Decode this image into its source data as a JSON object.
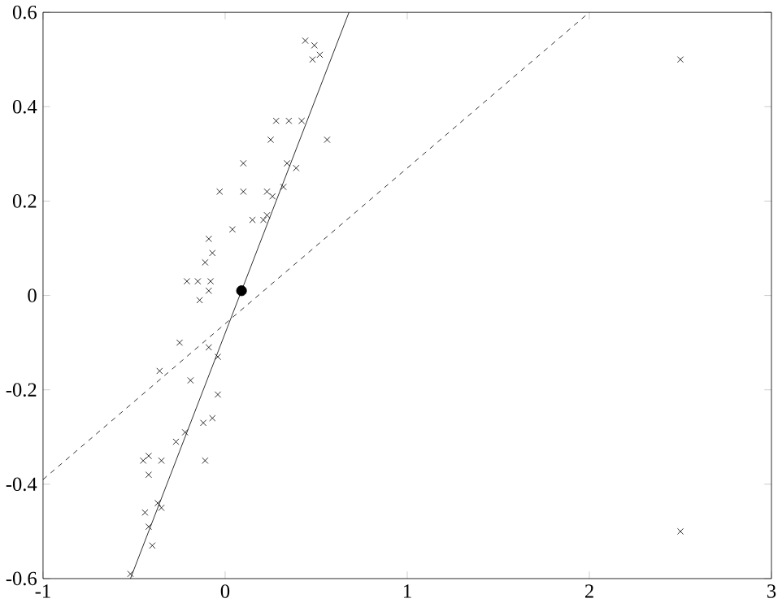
{
  "chart_data": {
    "type": "scatter",
    "xlim": [
      -1,
      3
    ],
    "ylim": [
      -0.6,
      0.6
    ],
    "xticks": [
      -1,
      0,
      1,
      2,
      3
    ],
    "yticks": [
      -0.6,
      -0.4,
      -0.2,
      0,
      0.2,
      0.4,
      0.6
    ],
    "grid": false,
    "series": [
      {
        "marker": "cross",
        "color": "#000000",
        "x": [
          0.44,
          0.49,
          0.52,
          0.48,
          0.28,
          0.35,
          0.42,
          0.25,
          0.56,
          0.1,
          0.34,
          0.39,
          -0.03,
          0.1,
          0.23,
          0.26,
          0.32,
          0.15,
          0.23,
          0.21,
          0.04,
          -0.09,
          -0.07,
          -0.11,
          -0.21,
          -0.15,
          -0.08,
          -0.09,
          -0.14,
          -0.25,
          -0.09,
          -0.04,
          -0.36,
          -0.19,
          -0.04,
          -0.12,
          -0.07,
          -0.22,
          -0.27,
          -0.42,
          -0.45,
          -0.35,
          -0.11,
          -0.42,
          -0.37,
          -0.35,
          -0.44,
          -0.42,
          -0.4,
          -0.52,
          2.5,
          2.5
        ],
        "values": [
          0.54,
          0.53,
          0.51,
          0.5,
          0.37,
          0.37,
          0.37,
          0.33,
          0.33,
          0.28,
          0.28,
          0.27,
          0.22,
          0.22,
          0.22,
          0.21,
          0.23,
          0.16,
          0.17,
          0.16,
          0.14,
          0.12,
          0.09,
          0.07,
          0.03,
          0.03,
          0.03,
          0.01,
          -0.01,
          -0.1,
          -0.11,
          -0.13,
          -0.16,
          -0.18,
          -0.21,
          -0.27,
          -0.26,
          -0.29,
          -0.31,
          -0.34,
          -0.35,
          -0.35,
          -0.35,
          -0.38,
          -0.44,
          -0.45,
          -0.46,
          -0.49,
          -0.53,
          -0.59,
          0.5,
          -0.5
        ]
      },
      {
        "marker": "circle",
        "color": "#000000",
        "x": [
          0.09
        ],
        "values": [
          0.01
        ]
      },
      {
        "type": "line",
        "line_style": "solid",
        "color": "#000000",
        "x": [
          -0.52,
          0.68
        ],
        "values": [
          -0.6,
          0.6
        ]
      },
      {
        "type": "line",
        "line_style": "dashed",
        "color": "#000000",
        "x": [
          -1,
          2
        ],
        "values": [
          -0.39,
          0.6
        ]
      }
    ]
  }
}
